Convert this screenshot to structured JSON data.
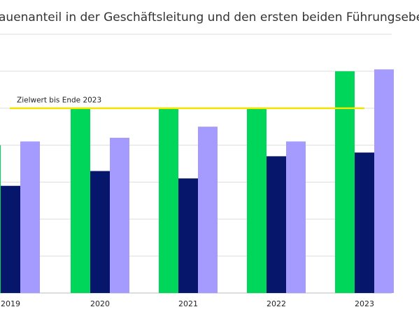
{
  "chart_data": {
    "type": "bar",
    "title": "auenanteil in der Geschäftsleitung und den ersten beiden Führungseben",
    "categories": [
      "2019",
      "2020",
      "2021",
      "2022",
      "2023"
    ],
    "series": [
      {
        "values": [
          40,
          50,
          50,
          50,
          60
        ]
      },
      {
        "values": [
          29,
          33,
          31,
          37,
          38
        ]
      },
      {
        "values": [
          41,
          42,
          45,
          41,
          60.5
        ]
      }
    ],
    "reference_line": {
      "label": "Zielwert bis Ende 2023",
      "value": 50
    },
    "ylim": [
      0,
      70
    ],
    "grid": true,
    "colors": {
      "series": [
        "#00d659",
        "#06166b",
        "#a59bff"
      ],
      "reference_line": "#f2e600",
      "grid": "#dddddd"
    }
  }
}
